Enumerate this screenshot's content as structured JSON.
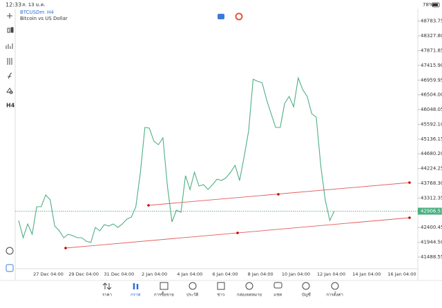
{
  "status_bar": {
    "time": "12:33",
    "date": "ส. 13 ม.ค.",
    "battery": "78%"
  },
  "symbol": {
    "name": "BTCUSDm",
    "timeframe": "H4",
    "description": "Bitcoin vs US Dollar"
  },
  "toolbar": {
    "timeframe": "H4"
  },
  "chart_data": {
    "type": "line",
    "color": "#4caf82",
    "values": [
      42618,
      42085,
      42511,
      42192,
      43044,
      43044,
      43406,
      43257,
      42447,
      42298,
      42085,
      42192,
      42149,
      42085,
      42085,
      41979,
      41936,
      42405,
      42298,
      42490,
      42447,
      42511,
      42405,
      42511,
      42661,
      42724,
      43044,
      44110,
      45495,
      45474,
      45068,
      44962,
      45175,
      43683,
      42575,
      42938,
      42874,
      44003,
      43577,
      44110,
      43683,
      43726,
      43577,
      43726,
      43897,
      43854,
      43939,
      44110,
      44323,
      43854,
      44578,
      45388,
      46987,
      46922,
      46880,
      46347,
      45921,
      45495,
      45495,
      46241,
      46454,
      46134,
      47029,
      46667,
      46454,
      45921,
      45815,
      44323,
      43257,
      42618,
      42906.53
    ],
    "ylim": [
      41126.3,
      49181.6
    ],
    "yticks": [
      48783.75,
      {
        "value": 48327.8,
        "label": "48327.80"
      },
      47871.85,
      {
        "value": 47415.9,
        "label": "47415.90"
      },
      46959.95,
      {
        "value": 46504,
        "label": "46504.00"
      },
      46048.05,
      {
        "value": 45592.1,
        "label": "45592.10"
      },
      45136.15,
      {
        "value": 44680.2,
        "label": "44680.20"
      },
      44224.25,
      {
        "value": 43768.3,
        "label": "43768.30"
      },
      43312.35,
      42400.45,
      {
        "value": 41944.5,
        "label": "41944.50"
      },
      41488.55
    ],
    "x_labels": [
      "27 Dec 04:00",
      "29 Dec 04:00",
      "31 Dec 04:00",
      "2 Jan 04:00",
      "4 Jan 04:00",
      "6 Jan 04:00",
      "8 Jan 04:00",
      "10 Jan 04:00",
      "12 Jan 04:00",
      "14 Jan 04:00",
      "16 Jan 04:00"
    ],
    "current_price": 42906.53
  },
  "nav": [
    "ราคา",
    "กราฟ",
    "การซื้อขาย",
    "ประวัติ",
    "ข่าว",
    "กล่องจดหมาย",
    "แชท",
    "บัญชี",
    "การตั้งค่า"
  ]
}
